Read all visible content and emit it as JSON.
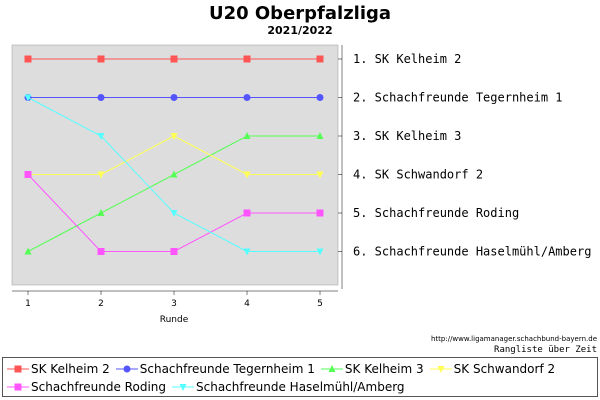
{
  "chart_data": {
    "type": "line",
    "title": "U20 Oberpfalzliga",
    "subtitle": "2021/2022",
    "xlabel": "Runde",
    "x": [
      1,
      2,
      3,
      4,
      5
    ],
    "y_inverted": true,
    "ylim": [
      1,
      6
    ],
    "grid": false,
    "legend_placement": "bottom",
    "series": [
      {
        "name": "SK Kelheim 2",
        "values": [
          1,
          1,
          1,
          1,
          1
        ],
        "color": "#ff5555",
        "marker": "square"
      },
      {
        "name": "Schachfreunde Tegernheim 1",
        "values": [
          2,
          2,
          2,
          2,
          2
        ],
        "color": "#5555ff",
        "marker": "circle"
      },
      {
        "name": "SK Kelheim 3",
        "values": [
          6,
          5,
          4,
          3,
          3
        ],
        "color": "#55ff55",
        "marker": "triangle-up"
      },
      {
        "name": "SK Schwandorf 2",
        "values": [
          4,
          4,
          3,
          4,
          4
        ],
        "color": "#ffff55",
        "marker": "triangle-down"
      },
      {
        "name": "Schachfreunde Roding",
        "values": [
          4,
          6,
          6,
          5,
          5
        ],
        "color": "#ff55ff",
        "marker": "square"
      },
      {
        "name": "Schachfreunde Haselmühl/Amberg",
        "values": [
          2,
          3,
          5,
          6,
          6
        ],
        "color": "#55ffff",
        "marker": "triangle-down"
      }
    ],
    "final_ranking": [
      "1. SK Kelheim 2",
      "2. Schachfreunde Tegernheim 1",
      "3. SK Kelheim 3",
      "4. SK Schwandorf 2",
      "5. Schachfreunde Roding",
      "6. Schachfreunde Haselmühl/Amberg"
    ],
    "source_url": "http://www.ligamanager.schachbund-bayern.de",
    "caption": "Rangliste über Zeit"
  }
}
